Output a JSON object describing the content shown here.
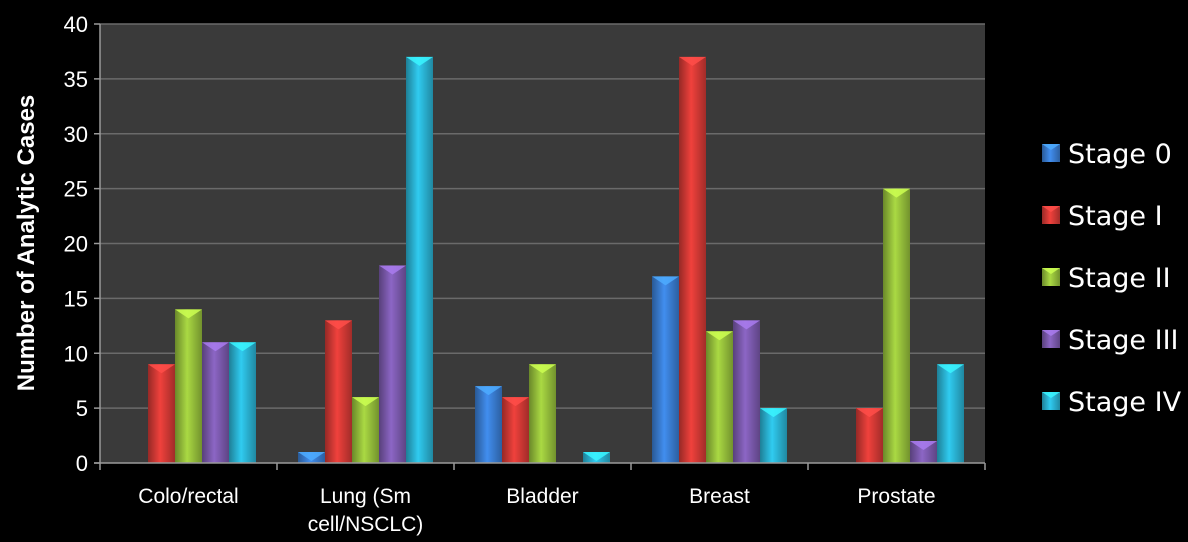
{
  "chart_data": {
    "type": "bar",
    "categories": [
      "Colo/rectal",
      "Lung (Sm cell/NSCLC)",
      "Bladder",
      "Breast",
      "Prostate"
    ],
    "category_lines": [
      [
        "Colo/rectal"
      ],
      [
        "Lung (Sm",
        "cell/NSCLC)"
      ],
      [
        "Bladder"
      ],
      [
        "Breast"
      ],
      [
        "Prostate"
      ]
    ],
    "series": [
      {
        "name": "Stage 0",
        "color": "#3a7fd5",
        "values": [
          0,
          1,
          7,
          17,
          0
        ]
      },
      {
        "name": "Stage I",
        "color": "#d63a36",
        "values": [
          9,
          13,
          6,
          37,
          5
        ]
      },
      {
        "name": "Stage II",
        "color": "#98c23c",
        "values": [
          14,
          6,
          9,
          12,
          25
        ]
      },
      {
        "name": "Stage III",
        "color": "#7d5bb0",
        "values": [
          11,
          18,
          0,
          13,
          2
        ]
      },
      {
        "name": "Stage IV",
        "color": "#2bb5d6",
        "values": [
          11,
          37,
          1,
          5,
          9
        ]
      }
    ],
    "ylabel": "Number of Analytic Cases",
    "xlabel": "",
    "ylim": [
      0,
      40
    ],
    "yticks": [
      "0",
      "5",
      "10",
      "15",
      "20",
      "25",
      "30",
      "35",
      "40"
    ],
    "grid": true,
    "legend_position": "right",
    "plot_background": "#3a3a3a",
    "page_background": "#000000"
  }
}
